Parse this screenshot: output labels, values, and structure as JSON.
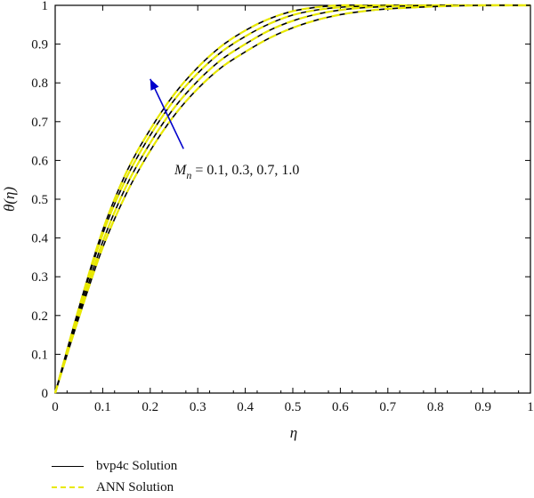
{
  "chart_data": {
    "type": "line",
    "xlabel": "η",
    "ylabel": "θ(η)",
    "xlim": [
      0,
      1
    ],
    "ylim": [
      0,
      1
    ],
    "xticks": [
      "0",
      "0.1",
      "0.2",
      "0.3",
      "0.4",
      "0.5",
      "0.6",
      "0.7",
      "0.8",
      "0.9",
      "1"
    ],
    "yticks": [
      "0",
      "0.1",
      "0.2",
      "0.3",
      "0.4",
      "0.5",
      "0.6",
      "0.7",
      "0.8",
      "0.9",
      "1"
    ],
    "grid": false,
    "x": [
      0,
      0.05,
      0.1,
      0.15,
      0.2,
      0.25,
      0.3,
      0.35,
      0.4,
      0.45,
      0.5,
      0.55,
      0.6,
      0.65,
      0.7,
      0.8,
      0.9,
      1.0
    ],
    "series": [
      {
        "values": [
          0,
          0.22,
          0.42,
          0.57,
          0.68,
          0.77,
          0.84,
          0.895,
          0.935,
          0.965,
          0.985,
          0.995,
          1.0,
          1.0,
          1.0,
          1.0,
          1.0,
          1.0
        ]
      },
      {
        "values": [
          0,
          0.215,
          0.41,
          0.555,
          0.665,
          0.755,
          0.825,
          0.88,
          0.92,
          0.952,
          0.975,
          0.988,
          0.995,
          0.998,
          1.0,
          1.0,
          1.0,
          1.0
        ]
      },
      {
        "values": [
          0,
          0.205,
          0.39,
          0.535,
          0.645,
          0.735,
          0.805,
          0.86,
          0.9,
          0.935,
          0.96,
          0.977,
          0.988,
          0.994,
          0.997,
          1.0,
          1.0,
          1.0
        ]
      },
      {
        "values": [
          0,
          0.195,
          0.375,
          0.515,
          0.625,
          0.715,
          0.785,
          0.84,
          0.88,
          0.915,
          0.942,
          0.962,
          0.976,
          0.985,
          0.991,
          0.997,
          1.0,
          1.0
        ]
      }
    ],
    "annotation": {
      "symbol": "M",
      "subscript": "n",
      "text": " = 0.1, 0.3, 0.7, 1.0",
      "arrow_from": [
        0.27,
        0.63
      ],
      "arrow_to": [
        0.2,
        0.81
      ]
    },
    "legend_position": "bottom-left",
    "colors": {
      "bvp4c": "#000000",
      "ann": "#e8e800",
      "arrow": "#0000cc"
    }
  },
  "legend": {
    "items": [
      {
        "label": "bvp4c Solution",
        "color": "#000000",
        "style": "solid"
      },
      {
        "label": "ANN Solution",
        "color": "#e8e800",
        "style": "dashed"
      }
    ]
  }
}
